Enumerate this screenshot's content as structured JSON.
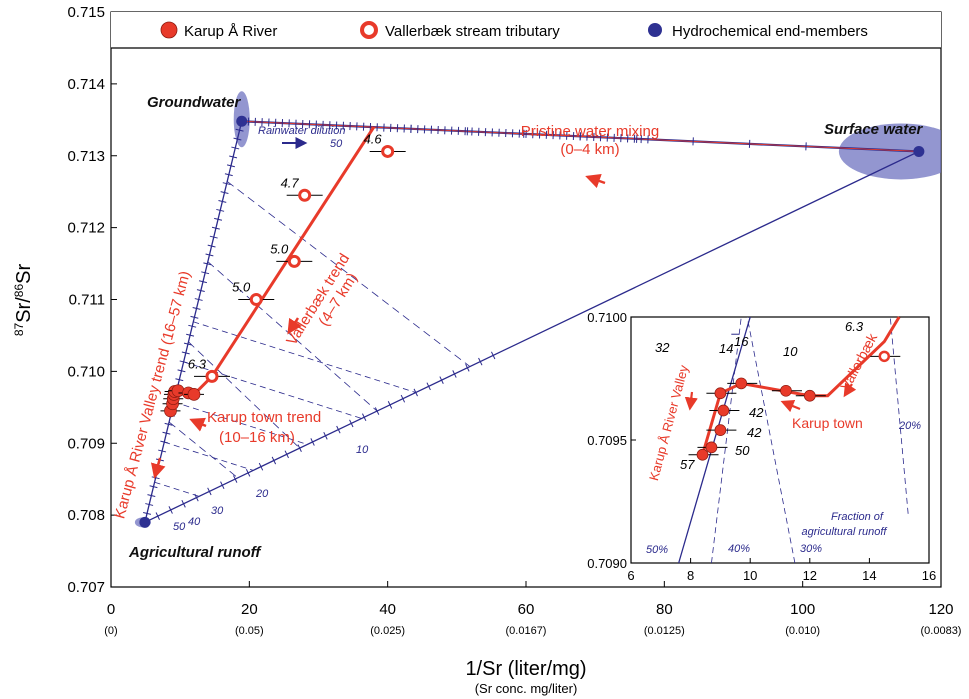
{
  "chart_data": {
    "type": "scatter",
    "xlabel": "1/Sr (liter/mg)",
    "xlabel_sub": "(Sr conc. mg/liter)",
    "ylabel_parts": {
      "sup1": "87",
      "base1": "Sr/",
      "sup2": "86",
      "base2": "Sr"
    },
    "xlim": [
      0,
      120
    ],
    "ylim": [
      0.707,
      0.715
    ],
    "x_ticks": [
      {
        "value": 0,
        "label": "0",
        "sub": "(0)"
      },
      {
        "value": 20,
        "label": "20",
        "sub": "(0.05)"
      },
      {
        "value": 40,
        "label": "40",
        "sub": "(0.025)"
      },
      {
        "value": 60,
        "label": "60",
        "sub": "(0.0167)"
      },
      {
        "value": 80,
        "label": "80",
        "sub": "(0.0125)"
      },
      {
        "value": 100,
        "label": "100",
        "sub": "(0.010)"
      },
      {
        "value": 120,
        "label": "120",
        "sub": "(0.0083)"
      }
    ],
    "y_ticks": [
      {
        "value": 0.707,
        "label": "0.707"
      },
      {
        "value": 0.708,
        "label": "0.708"
      },
      {
        "value": 0.709,
        "label": "0.709"
      },
      {
        "value": 0.71,
        "label": "0.710"
      },
      {
        "value": 0.711,
        "label": "0.711"
      },
      {
        "value": 0.712,
        "label": "0.712"
      },
      {
        "value": 0.713,
        "label": "0.713"
      },
      {
        "value": 0.714,
        "label": "0.714"
      },
      {
        "value": 0.715,
        "label": "0.715"
      }
    ],
    "legend": [
      {
        "name": "Karup Å River",
        "marker": "red-filled"
      },
      {
        "name": "Vallerbæk stream tributary",
        "marker": "red-ring"
      },
      {
        "name": "Hydrochemical end-members",
        "marker": "blue"
      }
    ],
    "end_members": [
      {
        "name": "Groundwater",
        "x": 18.9,
        "y": 0.71348
      },
      {
        "name": "Surface water",
        "x": 116.8,
        "y": 0.71306
      },
      {
        "name": "Agricultural runoff",
        "x": 4.9,
        "y": 0.7079
      }
    ],
    "karup_points": [
      {
        "x": 8.6,
        "y": 0.70945
      },
      {
        "x": 8.9,
        "y": 0.70955
      },
      {
        "x": 9.0,
        "y": 0.70962
      },
      {
        "x": 9.1,
        "y": 0.70968
      },
      {
        "x": 9.2,
        "y": 0.70972
      },
      {
        "x": 9.7,
        "y": 0.70973
      },
      {
        "x": 11.2,
        "y": 0.7097
      },
      {
        "x": 12.0,
        "y": 0.70968
      }
    ],
    "vallerbaek_points": [
      {
        "x": 14.6,
        "y": 0.70993,
        "label": "6.3"
      },
      {
        "x": 21.0,
        "y": 0.711,
        "label": "5.0"
      },
      {
        "x": 26.5,
        "y": 0.71153,
        "label": "5.0"
      },
      {
        "x": 28.0,
        "y": 0.71245,
        "label": "4.7"
      },
      {
        "x": 40.0,
        "y": 0.71306,
        "label": "4.6"
      }
    ],
    "annotations": {
      "groundwater": "Groundwater",
      "surface_water": "Surface water",
      "agricultural_runoff": "Agricultural runoff",
      "rainwater_dilution": "Rainwater dilution",
      "rain_tick": "50",
      "pristine_1": "Pristine water mixing",
      "pristine_2": "(0–4 km)",
      "vallerbaek_trend_1": "Vallerbæk trend",
      "vallerbaek_trend_2": "(4–7 km)",
      "karup_valley_trend": "Karup Å River Valley trend (16–57 km)",
      "karup_town_1": "Karup town trend",
      "karup_town_2": "(10–16 km)",
      "frac_10": "10",
      "frac_20": "20",
      "frac_30": "30",
      "frac_40": "40",
      "frac_50": "50"
    },
    "inset": {
      "xlim": [
        6,
        16
      ],
      "ylim": [
        0.709,
        0.71
      ],
      "x_ticks": [
        "6",
        "8",
        "10",
        "12",
        "14",
        "16"
      ],
      "y_ticks": [
        {
          "value": 0.709,
          "label": "0.7090"
        },
        {
          "value": 0.7095,
          "label": "0.7095"
        },
        {
          "value": 0.71,
          "label": "0.7100"
        }
      ],
      "points": [
        {
          "x": 9.0,
          "y": 0.70969,
          "label": "32",
          "kind": "filled"
        },
        {
          "x": 9.7,
          "y": 0.70973,
          "label": "16",
          "kind": "filled"
        },
        {
          "x": 11.2,
          "y": 0.7097,
          "label": "14",
          "kind": "filled"
        },
        {
          "x": 12.0,
          "y": 0.70968,
          "label": "10",
          "kind": "filled"
        },
        {
          "x": 9.1,
          "y": 0.70962,
          "label": "42",
          "kind": "filled"
        },
        {
          "x": 9.0,
          "y": 0.70954,
          "label": "42",
          "kind": "filled"
        },
        {
          "x": 8.7,
          "y": 0.70947,
          "label": "50",
          "kind": "filled"
        },
        {
          "x": 8.4,
          "y": 0.70944,
          "label": "57",
          "kind": "filled"
        },
        {
          "x": 14.5,
          "y": 0.70984,
          "label": "6.3",
          "kind": "ring"
        }
      ],
      "annotations": {
        "valley": "Karup Å River Valley",
        "town": "Karup town",
        "vallerbaek": "Vallerbæk",
        "fraction_1": "Fraction of",
        "fraction_2": "agricultural runoff",
        "p50": "50%",
        "p40": "40%",
        "p30": "30%",
        "p20": "20%"
      }
    }
  },
  "colors": {
    "red": "#e83a2a",
    "blue_line": "#2b2a8c",
    "blue_fill": "#6f73c0",
    "end_member": "#2e3192"
  }
}
